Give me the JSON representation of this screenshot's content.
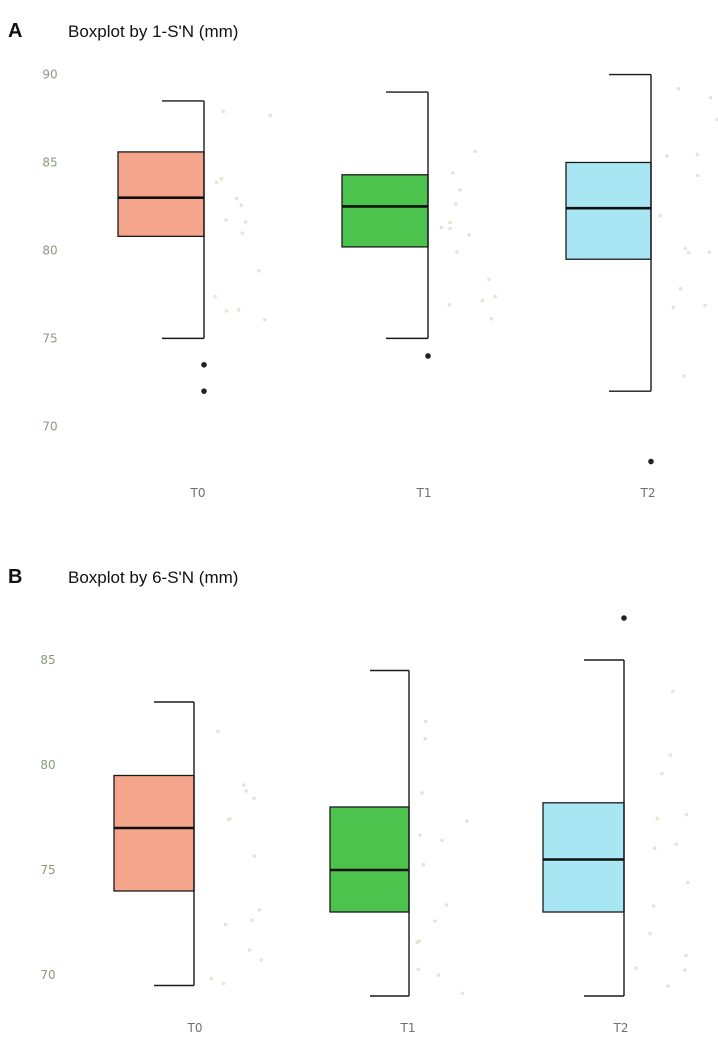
{
  "colors": {
    "T0": "#f4a58c",
    "T1": "#4cc34c",
    "T2": "#a8e6f4",
    "jitter": "#dfe8d4",
    "outlier": "#222222",
    "box_stroke": "#1a1a1a",
    "tick_text": "#8a9a80"
  },
  "chart_data": [
    {
      "type": "boxplot",
      "panel_label": "A",
      "title": "Boxplot by 1-S'N (mm)",
      "xlabel": "",
      "ylabel": "",
      "categories": [
        "T0",
        "T1",
        "T2"
      ],
      "yticks": [
        70,
        75,
        80,
        85,
        90
      ],
      "ylim": [
        67,
        91
      ],
      "grid": false,
      "legend": "none",
      "boxes": [
        {
          "name": "T0",
          "whisker_low": 75.0,
          "q1": 80.8,
          "median": 83.0,
          "q3": 85.6,
          "whisker_high": 88.5,
          "outliers": [
            73.5,
            72.0
          ]
        },
        {
          "name": "T1",
          "whisker_low": 75.0,
          "q1": 80.2,
          "median": 82.5,
          "q3": 84.3,
          "whisker_high": 89.0,
          "outliers": [
            74.0
          ]
        },
        {
          "name": "T2",
          "whisker_low": 72.0,
          "q1": 79.5,
          "median": 82.4,
          "q3": 85.0,
          "whisker_high": 90.0,
          "outliers": [
            68.0
          ]
        }
      ]
    },
    {
      "type": "boxplot",
      "panel_label": "B",
      "title": "Boxplot by 6-S'N (mm)",
      "xlabel": "",
      "ylabel": "",
      "categories": [
        "T0",
        "T1",
        "T2"
      ],
      "yticks": [
        70,
        75,
        80,
        85
      ],
      "ylim": [
        69,
        87.5
      ],
      "grid": false,
      "legend": "none",
      "boxes": [
        {
          "name": "T0",
          "whisker_low": 69.5,
          "q1": 74.0,
          "median": 77.0,
          "q3": 79.5,
          "whisker_high": 83.0,
          "outliers": []
        },
        {
          "name": "T1",
          "whisker_low": 69.0,
          "q1": 73.0,
          "median": 75.0,
          "q3": 78.0,
          "whisker_high": 84.5,
          "outliers": []
        },
        {
          "name": "T2",
          "whisker_low": 69.0,
          "q1": 73.0,
          "median": 75.5,
          "q3": 78.2,
          "whisker_high": 85.0,
          "outliers": [
            87.0
          ]
        }
      ]
    }
  ]
}
